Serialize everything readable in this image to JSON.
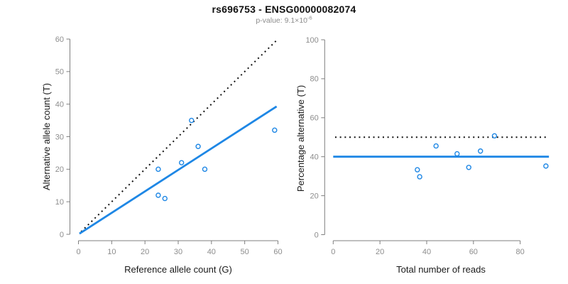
{
  "header": {
    "title": "rs696753 - ENSG00000082074",
    "subtitle_prefix": "p-value: 9.1×10",
    "subtitle_exponent": "-6"
  },
  "colors": {
    "accent_blue": "#1E87E5",
    "line_black": "#111111",
    "axis_gray": "#7F7F7F",
    "tick_label_gray": "#8D8D8D",
    "axis_title_black": "#1A1A1A"
  },
  "chart_data": [
    {
      "type": "scatter",
      "panel": "allele-counts",
      "xlabel": "Reference allele count (G)",
      "ylabel": "Alternative allele count (T)",
      "xlim": [
        0,
        60
      ],
      "ylim": [
        0,
        60
      ],
      "xticks": [
        0,
        10,
        20,
        30,
        40,
        50,
        60
      ],
      "yticks": [
        0,
        10,
        20,
        30,
        40,
        50,
        60
      ],
      "grid": false,
      "legend": null,
      "points": [
        {
          "x": 24,
          "y": 12
        },
        {
          "x": 24,
          "y": 20
        },
        {
          "x": 26,
          "y": 11
        },
        {
          "x": 31,
          "y": 22
        },
        {
          "x": 34,
          "y": 35
        },
        {
          "x": 36,
          "y": 27
        },
        {
          "x": 38,
          "y": 20
        },
        {
          "x": 59,
          "y": 32
        }
      ],
      "lines": [
        {
          "name": "identity-line",
          "style": "dotted",
          "color_key": "line_black",
          "width": 2,
          "from": [
            0.8,
            0.8
          ],
          "to": [
            59.4,
            59.4
          ]
        },
        {
          "name": "regression-line",
          "style": "solid",
          "color_key": "accent_blue",
          "width": 2.8,
          "from": [
            0.3,
            0.2
          ],
          "to": [
            59.6,
            39.3
          ]
        }
      ]
    },
    {
      "type": "scatter",
      "panel": "percentage-alternative",
      "xlabel": "Total number of reads",
      "ylabel": "Percentage alternative (T)",
      "xlim": [
        0,
        92
      ],
      "ylim": [
        0,
        100
      ],
      "xticks": [
        0,
        20,
        40,
        60,
        80
      ],
      "yticks": [
        0,
        20,
        40,
        60,
        80,
        100
      ],
      "grid": false,
      "legend": null,
      "points": [
        {
          "x": 36,
          "y": 33.3
        },
        {
          "x": 37,
          "y": 29.7
        },
        {
          "x": 44,
          "y": 45.5
        },
        {
          "x": 53,
          "y": 41.5
        },
        {
          "x": 58,
          "y": 34.5
        },
        {
          "x": 63,
          "y": 42.9
        },
        {
          "x": 69,
          "y": 50.7
        },
        {
          "x": 91,
          "y": 35.2
        }
      ],
      "lines": [
        {
          "name": "expected-50pct-line",
          "style": "dotted",
          "color_key": "line_black",
          "width": 2,
          "from": [
            0.8,
            50
          ],
          "to": [
            91,
            50
          ]
        },
        {
          "name": "mean-percentage-line",
          "style": "solid",
          "color_key": "accent_blue",
          "width": 2.8,
          "from": [
            0,
            40
          ],
          "to": [
            92.3,
            40
          ]
        }
      ]
    }
  ]
}
